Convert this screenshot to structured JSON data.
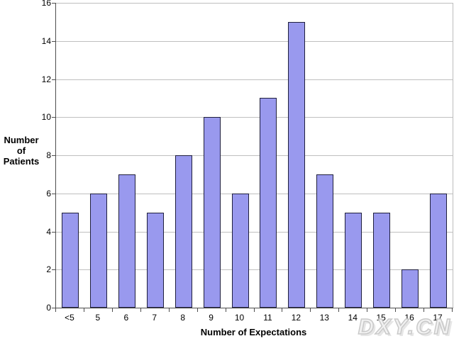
{
  "chart_data": {
    "type": "bar",
    "title": "",
    "categories": [
      "<5",
      "5",
      "6",
      "7",
      "8",
      "9",
      "10",
      "11",
      "12",
      "13",
      "14",
      "15",
      "16",
      "17"
    ],
    "values": [
      5,
      6,
      7,
      5,
      8,
      10,
      6,
      11,
      15,
      7,
      5,
      5,
      2,
      6
    ],
    "xlabel": "Number of Expectations",
    "ylabel": "Number of Patients",
    "ylabel_display": "Number\nof\nPatients",
    "ylim": [
      0,
      16
    ],
    "ytick_step": 2,
    "ytick_labels": [
      "0",
      "2",
      "4",
      "6",
      "8",
      "10",
      "12",
      "14",
      "16"
    ],
    "grid": true,
    "legend": false,
    "colors": {
      "bar_fill": "#9999ee",
      "bar_border": "#1f1f3d",
      "gridline": "#bfbfbf",
      "axis": "#4d4d4d",
      "text": "#000000"
    }
  },
  "watermark": {
    "text": "DXY.CN"
  }
}
